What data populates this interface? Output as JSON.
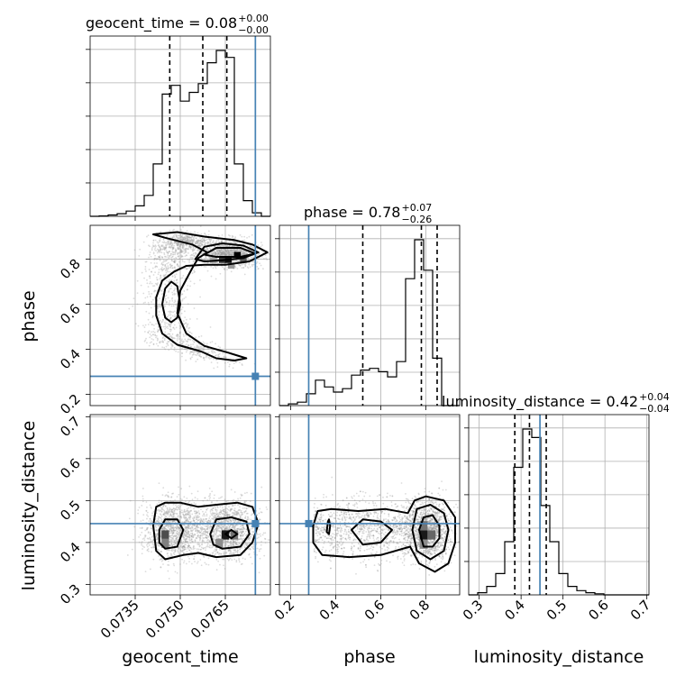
{
  "chart_data": {
    "type": "corner",
    "parameters": [
      "geocent_time",
      "phase",
      "luminosity_distance"
    ],
    "truths": {
      "geocent_time": 0.0775,
      "phase": 0.28,
      "luminosity_distance": 0.445
    },
    "titles": [
      {
        "param": "geocent_time",
        "label": "geocent_time",
        "median": "0.08",
        "plus": "+0.00",
        "minus": "−0.00"
      },
      {
        "param": "phase",
        "label": "phase",
        "median": "0.78",
        "plus": "+0.07",
        "minus": "−0.26"
      },
      {
        "param": "luminosity_distance",
        "label": "luminosity_distance",
        "median": "0.42",
        "plus": "+0.04",
        "minus": "−0.04"
      }
    ],
    "axis_labels": {
      "geocent_time": "geocent_time",
      "phase": "phase",
      "luminosity_distance": "luminosity_distance"
    },
    "axis_ranges": {
      "geocent_time": [
        0.072,
        0.078
      ],
      "phase": [
        0.15,
        0.95
      ],
      "luminosity_distance": [
        0.275,
        0.705
      ]
    },
    "ticks": {
      "geocent_time": [
        "0.0735",
        "0.0750",
        "0.0765"
      ],
      "phase": [
        "0.2",
        "0.4",
        "0.6",
        "0.8"
      ],
      "luminosity_distance": [
        "0.3",
        "0.4",
        "0.5",
        "0.6",
        "0.7"
      ]
    },
    "histograms": {
      "geocent_time": {
        "edges": [
          0.072,
          0.0723,
          0.0726,
          0.0729,
          0.0732,
          0.0735,
          0.0738,
          0.0741,
          0.0744,
          0.0747,
          0.075,
          0.0753,
          0.0756,
          0.0759,
          0.0762,
          0.0765,
          0.0768,
          0.0771,
          0.0774,
          0.0777,
          0.078
        ],
        "counts": [
          0,
          0.2,
          0.8,
          1.5,
          3,
          6,
          12,
          30,
          70,
          75,
          66,
          71,
          76,
          88,
          95,
          91,
          30,
          9,
          2,
          0
        ],
        "quantiles": [
          0.07465,
          0.07575,
          0.07655
        ]
      },
      "phase": {
        "edges": [
          0.15,
          0.19,
          0.23,
          0.27,
          0.31,
          0.35,
          0.39,
          0.43,
          0.47,
          0.51,
          0.55,
          0.59,
          0.63,
          0.67,
          0.71,
          0.75,
          0.79,
          0.83,
          0.87,
          0.91,
          0.95
        ],
        "counts": [
          0,
          1,
          2,
          7,
          15,
          11,
          8,
          10,
          18,
          21,
          22,
          20,
          17,
          26,
          75,
          98,
          80,
          28,
          0,
          0
        ],
        "quantiles": [
          0.52,
          0.78,
          0.85
        ]
      },
      "luminosity_distance": {
        "edges": [
          0.275,
          0.2965,
          0.318,
          0.3395,
          0.361,
          0.3825,
          0.404,
          0.4255,
          0.447,
          0.4685,
          0.49,
          0.5115,
          0.533,
          0.5545,
          0.576,
          0.5975,
          0.619,
          0.6405,
          0.662,
          0.6835,
          0.705
        ],
        "counts": [
          0,
          1,
          4,
          10,
          25,
          60,
          78,
          74,
          42,
          25,
          10,
          4,
          2,
          1,
          0.5,
          0,
          0,
          0,
          0,
          0
        ],
        "quantiles": [
          0.385,
          0.42,
          0.46
        ]
      }
    },
    "density_cells": [
      {
        "pair": [
          "geocent_time",
          "phase"
        ],
        "x": 0.0764,
        "y": 0.795,
        "w": 0.00022,
        "h": 0.024,
        "shade": 0.8
      },
      {
        "pair": [
          "geocent_time",
          "phase"
        ],
        "x": 0.0766,
        "y": 0.795,
        "w": 0.00022,
        "h": 0.024,
        "shade": 0.95
      },
      {
        "pair": [
          "geocent_time",
          "phase"
        ],
        "x": 0.0769,
        "y": 0.82,
        "w": 0.00022,
        "h": 0.024,
        "shade": 1.0
      },
      {
        "pair": [
          "geocent_time",
          "phase"
        ],
        "x": 0.0771,
        "y": 0.795,
        "w": 0.00022,
        "h": 0.024,
        "shade": 0.65
      },
      {
        "pair": [
          "geocent_time",
          "phase"
        ],
        "x": 0.0767,
        "y": 0.77,
        "w": 0.00022,
        "h": 0.024,
        "shade": 0.4
      },
      {
        "pair": [
          "geocent_time",
          "phase"
        ],
        "x": 0.0761,
        "y": 0.795,
        "w": 0.00022,
        "h": 0.024,
        "shade": 0.35
      },
      {
        "pair": [
          "geocent_time",
          "luminosity_distance"
        ],
        "x": 0.0745,
        "y": 0.418,
        "w": 0.00025,
        "h": 0.022,
        "shade": 0.7
      },
      {
        "pair": [
          "geocent_time",
          "luminosity_distance"
        ],
        "x": 0.0745,
        "y": 0.398,
        "w": 0.00025,
        "h": 0.022,
        "shade": 0.5
      },
      {
        "pair": [
          "geocent_time",
          "luminosity_distance"
        ],
        "x": 0.0765,
        "y": 0.418,
        "w": 0.00025,
        "h": 0.022,
        "shade": 0.9
      },
      {
        "pair": [
          "geocent_time",
          "luminosity_distance"
        ],
        "x": 0.0768,
        "y": 0.418,
        "w": 0.00025,
        "h": 0.022,
        "shade": 0.55
      },
      {
        "pair": [
          "geocent_time",
          "luminosity_distance"
        ],
        "x": 0.0763,
        "y": 0.398,
        "w": 0.00025,
        "h": 0.022,
        "shade": 0.45
      },
      {
        "pair": [
          "phase",
          "luminosity_distance"
        ],
        "x": 0.79,
        "y": 0.418,
        "w": 0.035,
        "h": 0.022,
        "shade": 0.9
      },
      {
        "pair": [
          "phase",
          "luminosity_distance"
        ],
        "x": 0.79,
        "y": 0.44,
        "w": 0.035,
        "h": 0.022,
        "shade": 0.55
      },
      {
        "pair": [
          "phase",
          "luminosity_distance"
        ],
        "x": 0.825,
        "y": 0.418,
        "w": 0.035,
        "h": 0.022,
        "shade": 0.6
      },
      {
        "pair": [
          "phase",
          "luminosity_distance"
        ],
        "x": 0.79,
        "y": 0.396,
        "w": 0.035,
        "h": 0.022,
        "shade": 0.45
      }
    ],
    "contours": [
      {
        "pair": [
          "geocent_time",
          "phase"
        ],
        "points": [
          [
            0.0749,
            0.92
          ],
          [
            0.0758,
            0.9
          ],
          [
            0.0768,
            0.885
          ],
          [
            0.0774,
            0.865
          ],
          [
            0.0779,
            0.83
          ],
          [
            0.0773,
            0.79
          ],
          [
            0.0765,
            0.775
          ],
          [
            0.0758,
            0.775
          ],
          [
            0.0752,
            0.77
          ],
          [
            0.0748,
            0.745
          ],
          [
            0.0744,
            0.705
          ],
          [
            0.0742,
            0.63
          ],
          [
            0.0742,
            0.55
          ],
          [
            0.0744,
            0.47
          ],
          [
            0.0749,
            0.42
          ],
          [
            0.0757,
            0.39
          ],
          [
            0.0762,
            0.36
          ],
          [
            0.0768,
            0.35
          ],
          [
            0.0772,
            0.36
          ],
          [
            0.0766,
            0.385
          ],
          [
            0.0758,
            0.415
          ],
          [
            0.0752,
            0.47
          ],
          [
            0.0749,
            0.56
          ],
          [
            0.075,
            0.66
          ],
          [
            0.0754,
            0.76
          ],
          [
            0.0756,
            0.805
          ],
          [
            0.0759,
            0.83
          ],
          [
            0.0754,
            0.865
          ],
          [
            0.0745,
            0.895
          ],
          [
            0.0741,
            0.91
          ],
          [
            0.0749,
            0.92
          ]
        ]
      },
      {
        "pair": [
          "geocent_time",
          "phase"
        ],
        "points": [
          [
            0.0755,
            0.8
          ],
          [
            0.0758,
            0.855
          ],
          [
            0.0764,
            0.87
          ],
          [
            0.0771,
            0.86
          ],
          [
            0.0776,
            0.83
          ],
          [
            0.0771,
            0.805
          ],
          [
            0.0764,
            0.795
          ],
          [
            0.0758,
            0.79
          ],
          [
            0.0755,
            0.8
          ]
        ]
      },
      {
        "pair": [
          "geocent_time",
          "phase"
        ],
        "points": [
          [
            0.0758,
            0.82
          ],
          [
            0.0762,
            0.85
          ],
          [
            0.077,
            0.85
          ],
          [
            0.0775,
            0.825
          ],
          [
            0.077,
            0.81
          ],
          [
            0.0762,
            0.81
          ],
          [
            0.0758,
            0.82
          ]
        ]
      },
      {
        "pair": [
          "geocent_time",
          "phase"
        ],
        "points": [
          [
            0.0744,
            0.6
          ],
          [
            0.0745,
            0.67
          ],
          [
            0.0747,
            0.7
          ],
          [
            0.0749,
            0.68
          ],
          [
            0.075,
            0.6
          ],
          [
            0.0749,
            0.54
          ],
          [
            0.0747,
            0.52
          ],
          [
            0.0745,
            0.54
          ],
          [
            0.0744,
            0.6
          ]
        ]
      },
      {
        "pair": [
          "geocent_time",
          "luminosity_distance"
        ],
        "points": [
          [
            0.0741,
            0.44
          ],
          [
            0.0742,
            0.485
          ],
          [
            0.0745,
            0.495
          ],
          [
            0.075,
            0.495
          ],
          [
            0.0756,
            0.485
          ],
          [
            0.0762,
            0.49
          ],
          [
            0.0769,
            0.495
          ],
          [
            0.0774,
            0.485
          ],
          [
            0.0776,
            0.445
          ],
          [
            0.0774,
            0.4
          ],
          [
            0.077,
            0.37
          ],
          [
            0.0762,
            0.365
          ],
          [
            0.0756,
            0.375
          ],
          [
            0.0751,
            0.37
          ],
          [
            0.0745,
            0.36
          ],
          [
            0.0742,
            0.38
          ],
          [
            0.0741,
            0.44
          ]
        ]
      },
      {
        "pair": [
          "geocent_time",
          "luminosity_distance"
        ],
        "points": [
          [
            0.0743,
            0.43
          ],
          [
            0.0745,
            0.455
          ],
          [
            0.0749,
            0.455
          ],
          [
            0.0751,
            0.43
          ],
          [
            0.0749,
            0.39
          ],
          [
            0.0745,
            0.385
          ],
          [
            0.0743,
            0.4
          ],
          [
            0.0743,
            0.43
          ]
        ]
      },
      {
        "pair": [
          "geocent_time",
          "luminosity_distance"
        ],
        "points": [
          [
            0.076,
            0.42
          ],
          [
            0.0762,
            0.455
          ],
          [
            0.0767,
            0.46
          ],
          [
            0.0772,
            0.45
          ],
          [
            0.0773,
            0.42
          ],
          [
            0.077,
            0.39
          ],
          [
            0.0764,
            0.385
          ],
          [
            0.0761,
            0.395
          ],
          [
            0.076,
            0.42
          ]
        ]
      },
      {
        "pair": [
          "geocent_time",
          "luminosity_distance"
        ],
        "points": [
          [
            0.0765,
            0.42
          ],
          [
            0.0767,
            0.43
          ],
          [
            0.0769,
            0.42
          ],
          [
            0.0767,
            0.41
          ],
          [
            0.0765,
            0.42
          ]
        ]
      },
      {
        "pair": [
          "phase",
          "luminosity_distance"
        ],
        "points": [
          [
            0.3,
            0.44
          ],
          [
            0.32,
            0.475
          ],
          [
            0.38,
            0.48
          ],
          [
            0.5,
            0.475
          ],
          [
            0.62,
            0.48
          ],
          [
            0.72,
            0.47
          ],
          [
            0.75,
            0.5
          ],
          [
            0.8,
            0.51
          ],
          [
            0.88,
            0.5
          ],
          [
            0.93,
            0.46
          ],
          [
            0.93,
            0.4
          ],
          [
            0.9,
            0.35
          ],
          [
            0.84,
            0.33
          ],
          [
            0.77,
            0.35
          ],
          [
            0.73,
            0.39
          ],
          [
            0.6,
            0.37
          ],
          [
            0.46,
            0.365
          ],
          [
            0.34,
            0.37
          ],
          [
            0.3,
            0.4
          ],
          [
            0.3,
            0.44
          ]
        ]
      },
      {
        "pair": [
          "phase",
          "luminosity_distance"
        ],
        "points": [
          [
            0.47,
            0.43
          ],
          [
            0.52,
            0.455
          ],
          [
            0.6,
            0.45
          ],
          [
            0.65,
            0.43
          ],
          [
            0.6,
            0.4
          ],
          [
            0.52,
            0.395
          ],
          [
            0.47,
            0.43
          ]
        ]
      },
      {
        "pair": [
          "phase",
          "luminosity_distance"
        ],
        "points": [
          [
            0.74,
            0.43
          ],
          [
            0.76,
            0.48
          ],
          [
            0.82,
            0.49
          ],
          [
            0.88,
            0.47
          ],
          [
            0.9,
            0.43
          ],
          [
            0.88,
            0.38
          ],
          [
            0.82,
            0.36
          ],
          [
            0.76,
            0.38
          ],
          [
            0.74,
            0.43
          ]
        ]
      },
      {
        "pair": [
          "phase",
          "luminosity_distance"
        ],
        "points": [
          [
            0.77,
            0.43
          ],
          [
            0.79,
            0.46
          ],
          [
            0.83,
            0.465
          ],
          [
            0.86,
            0.44
          ],
          [
            0.86,
            0.41
          ],
          [
            0.83,
            0.39
          ],
          [
            0.79,
            0.39
          ],
          [
            0.77,
            0.43
          ]
        ]
      },
      {
        "pair": [
          "phase",
          "luminosity_distance"
        ],
        "points": [
          [
            0.36,
            0.425
          ],
          [
            0.365,
            0.45
          ],
          [
            0.37,
            0.455
          ],
          [
            0.375,
            0.44
          ],
          [
            0.37,
            0.42
          ],
          [
            0.36,
            0.425
          ]
        ]
      }
    ]
  }
}
